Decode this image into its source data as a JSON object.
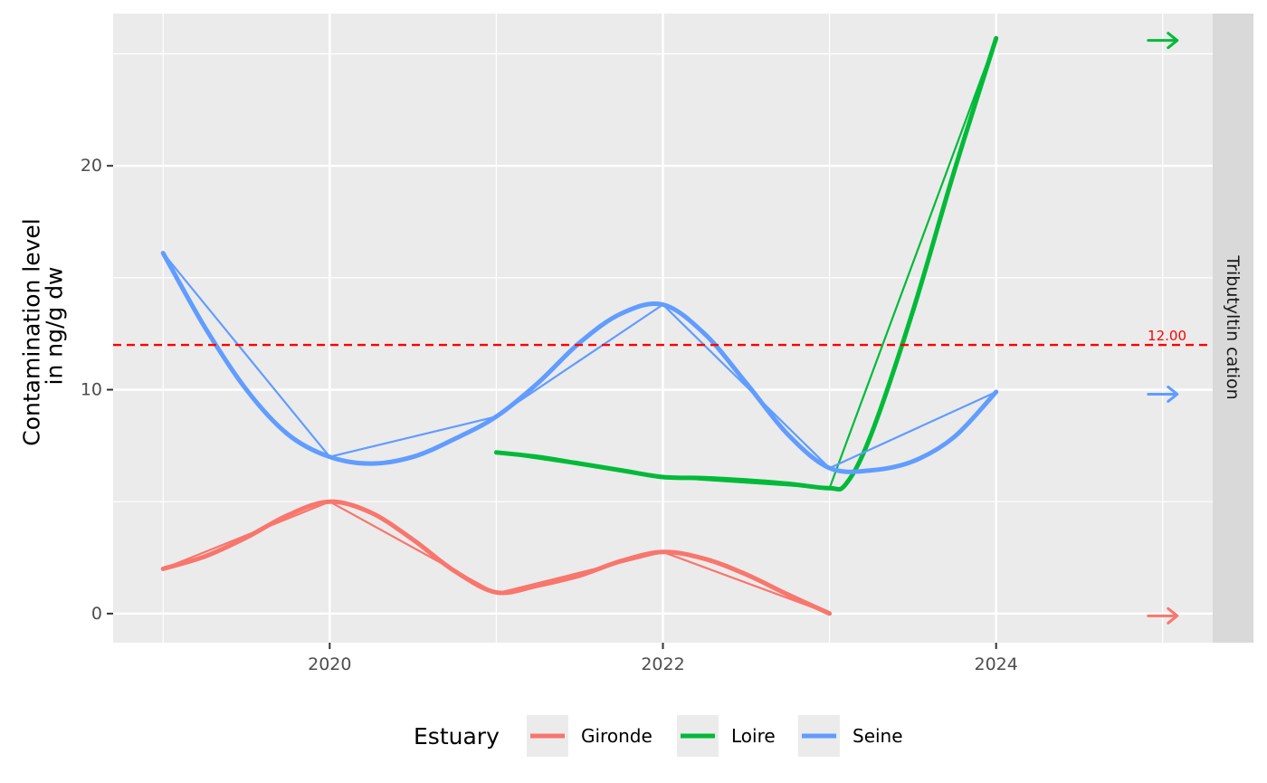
{
  "chart_data": {
    "type": "line",
    "facet_label": "Tributyltin cation",
    "ylabel_line1": "Contamination level",
    "ylabel_line2": "in ng/g dw",
    "xlabel": "",
    "xlim": [
      2018.7,
      2025.3
    ],
    "ylim": [
      -1.3,
      26.8
    ],
    "x_ticks": [
      2020,
      2022,
      2024
    ],
    "x_tick_labels": [
      "2020",
      "2022",
      "2024"
    ],
    "y_ticks": [
      0,
      10,
      20
    ],
    "y_tick_labels": [
      "0",
      "10",
      "20"
    ],
    "y_minor_ticks": [
      5,
      15,
      25
    ],
    "x_minor_ticks": [
      2019,
      2021,
      2023,
      2025
    ],
    "grid": true,
    "threshold": {
      "value": 12,
      "label": "12.00",
      "color": "#ff0000",
      "style": "dashed"
    },
    "legend": {
      "title": "Estuary",
      "position": "bottom"
    },
    "trend_arrow_x": 2025,
    "series": [
      {
        "name": "Gironde",
        "color": "#f8766d",
        "x": [
          2019,
          2020,
          2021,
          2022,
          2023
        ],
        "y": [
          2.0,
          5.0,
          0.9,
          2.75,
          0.0
        ],
        "smooth": [
          [
            2019,
            2.0
          ],
          [
            2019.25,
            2.55
          ],
          [
            2019.5,
            3.4
          ],
          [
            2019.75,
            4.4
          ],
          [
            2020,
            5.0
          ],
          [
            2020.25,
            4.5
          ],
          [
            2020.5,
            3.3
          ],
          [
            2020.75,
            1.9
          ],
          [
            2021,
            0.95
          ],
          [
            2021.25,
            1.25
          ],
          [
            2021.5,
            1.7
          ],
          [
            2021.75,
            2.35
          ],
          [
            2022,
            2.75
          ],
          [
            2022.25,
            2.45
          ],
          [
            2022.5,
            1.75
          ],
          [
            2022.75,
            0.85
          ],
          [
            2023,
            0.0
          ]
        ],
        "trend_arrow_y": -0.1,
        "trend": "flat"
      },
      {
        "name": "Loire",
        "color": "#00ba38",
        "x": [
          2021,
          2022,
          2023,
          2024
        ],
        "y": [
          7.2,
          6.1,
          5.6,
          25.7
        ],
        "smooth": [
          [
            2021,
            7.2
          ],
          [
            2021.25,
            7.0
          ],
          [
            2021.5,
            6.7
          ],
          [
            2021.75,
            6.4
          ],
          [
            2022,
            6.1
          ],
          [
            2022.25,
            6.05
          ],
          [
            2022.5,
            5.95
          ],
          [
            2022.75,
            5.8
          ],
          [
            2023,
            5.6
          ],
          [
            2023.1,
            5.8
          ],
          [
            2023.25,
            8.0
          ],
          [
            2023.5,
            13.5
          ],
          [
            2023.75,
            19.8
          ],
          [
            2024,
            25.7
          ]
        ],
        "trend_arrow_y": 25.6,
        "trend": "flat"
      },
      {
        "name": "Seine",
        "color": "#619cff",
        "x": [
          2019,
          2020,
          2021,
          2022,
          2023,
          2024
        ],
        "y": [
          16.1,
          7.0,
          8.8,
          13.8,
          6.5,
          9.9
        ],
        "smooth": [
          [
            2019,
            16.1
          ],
          [
            2019.25,
            12.8
          ],
          [
            2019.5,
            10.0
          ],
          [
            2019.75,
            8.0
          ],
          [
            2020,
            7.0
          ],
          [
            2020.25,
            6.7
          ],
          [
            2020.5,
            7.0
          ],
          [
            2020.75,
            7.8
          ],
          [
            2021,
            8.8
          ],
          [
            2021.25,
            10.3
          ],
          [
            2021.5,
            12.1
          ],
          [
            2021.75,
            13.4
          ],
          [
            2022,
            13.8
          ],
          [
            2022.25,
            12.5
          ],
          [
            2022.5,
            10.3
          ],
          [
            2022.75,
            8.0
          ],
          [
            2023,
            6.5
          ],
          [
            2023.25,
            6.4
          ],
          [
            2023.5,
            6.8
          ],
          [
            2023.75,
            7.9
          ],
          [
            2024,
            9.9
          ]
        ],
        "trend_arrow_y": 9.8,
        "trend": "flat"
      }
    ]
  }
}
